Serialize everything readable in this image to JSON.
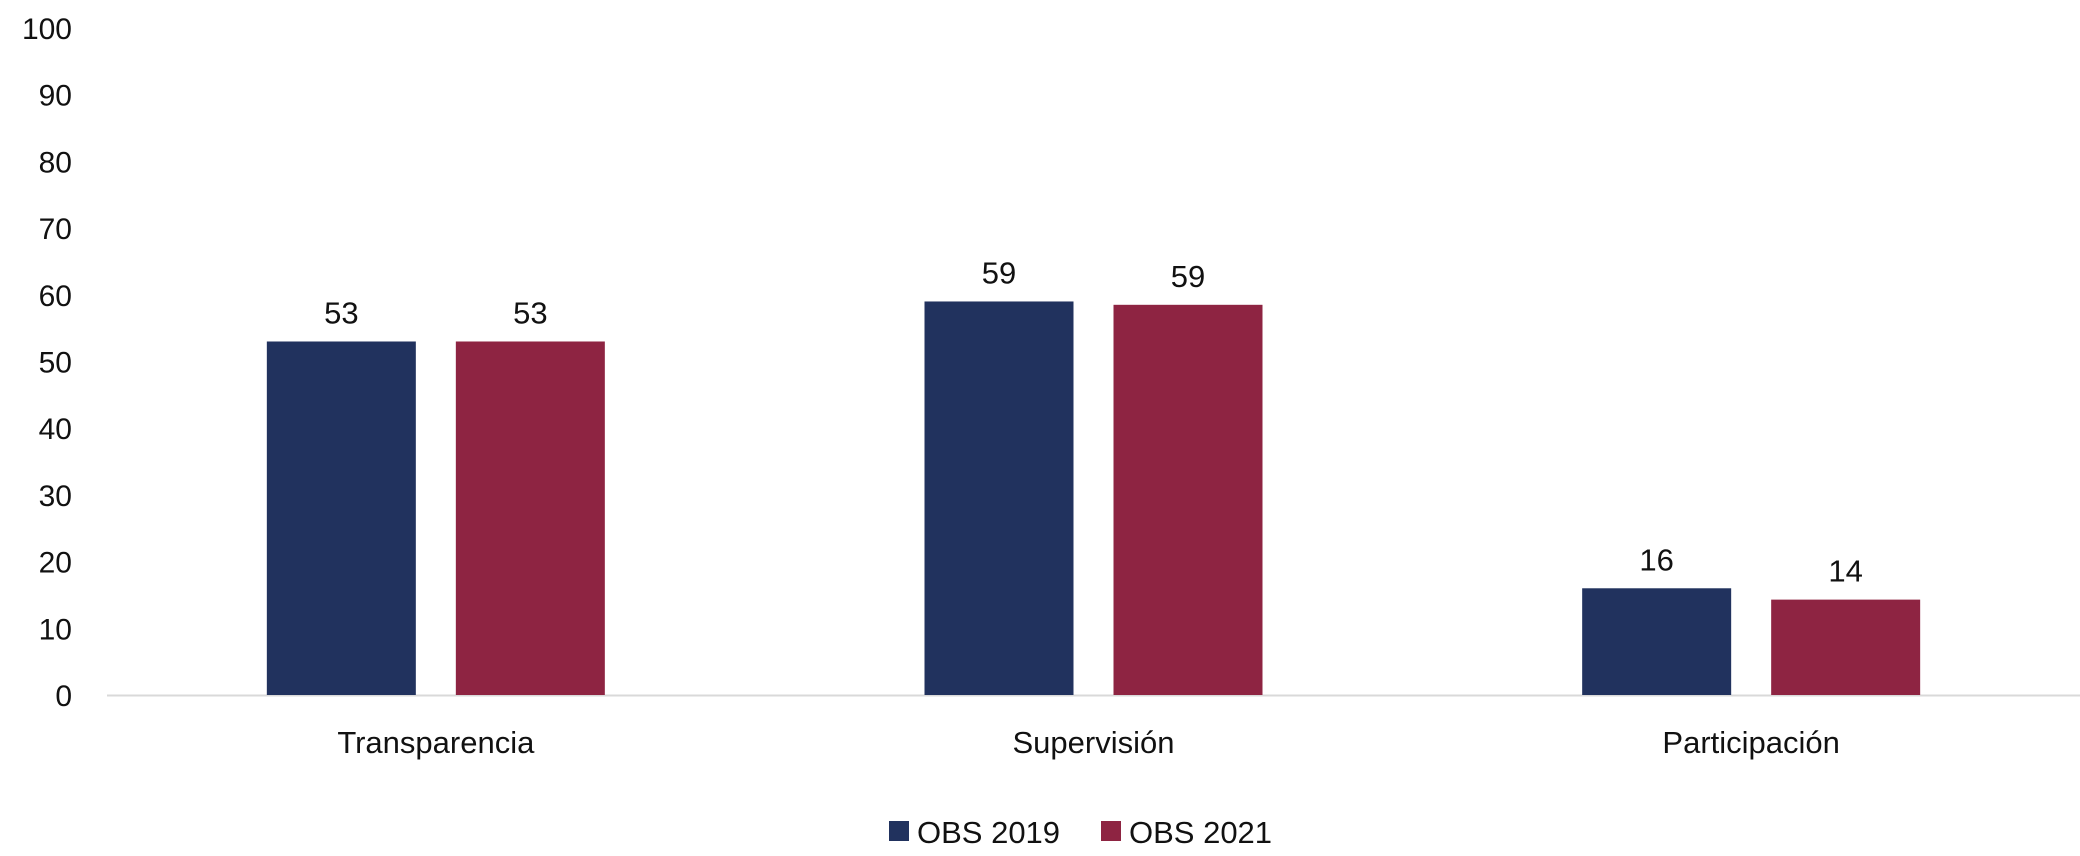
{
  "chart_data": {
    "type": "bar",
    "categories": [
      "Transparencia",
      "Supervisión",
      "Participación"
    ],
    "series": [
      {
        "name": "OBS 2019",
        "values": [
          53,
          59,
          16
        ],
        "labels": [
          "53",
          "59",
          "16"
        ],
        "color": "#21325e"
      },
      {
        "name": "OBS 2021",
        "values": [
          53,
          58.5,
          14.3
        ],
        "labels": [
          "53",
          "59",
          "14"
        ],
        "color": "#8e2442"
      }
    ],
    "y_ticks": [
      "0",
      "10",
      "20",
      "30",
      "40",
      "50",
      "60",
      "70",
      "80",
      "90",
      "100"
    ],
    "ylim": [
      0,
      100
    ],
    "grid": false,
    "legend_position": "bottom-center",
    "axis_color": "#d9d9d9"
  }
}
